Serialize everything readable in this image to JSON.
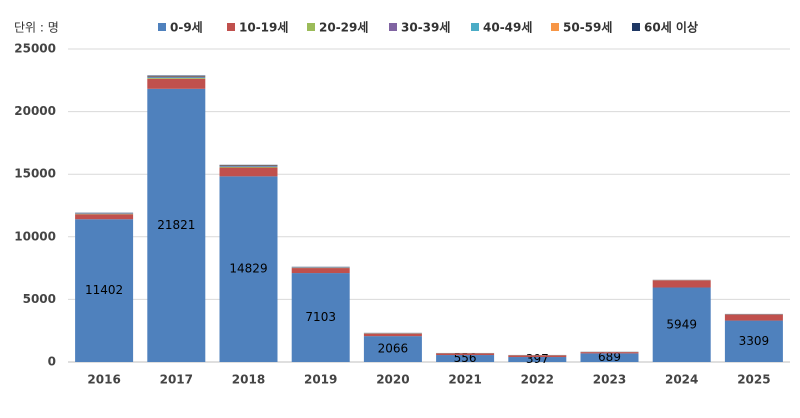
{
  "chart_data": {
    "type": "stacked_bar",
    "y_label": "단위 : 명",
    "categories": [
      "2016",
      "2017",
      "2018",
      "2019",
      "2020",
      "2021",
      "2022",
      "2023",
      "2024",
      "2025"
    ],
    "series": [
      {
        "name": "0-9세",
        "color": "#4f81bd",
        "data_labels": true,
        "values": [
          11402,
          21821,
          14829,
          7103,
          2066,
          556,
          397,
          689,
          5949,
          3309
        ]
      },
      {
        "name": "10-19세",
        "color": "#c0504d",
        "values": [
          400,
          800,
          700,
          400,
          200,
          130,
          130,
          100,
          580,
          480
        ]
      },
      {
        "name": "20-29세",
        "color": "#9bbb59",
        "values": [
          30,
          60,
          50,
          20,
          10,
          10,
          10,
          5,
          10,
          10
        ]
      },
      {
        "name": "30-39세",
        "color": "#8064a2",
        "values": [
          20,
          40,
          40,
          20,
          10,
          5,
          5,
          5,
          5,
          10
        ]
      },
      {
        "name": "40-49세",
        "color": "#4bacc6",
        "values": [
          20,
          50,
          40,
          20,
          10,
          5,
          5,
          5,
          5,
          5
        ]
      },
      {
        "name": "50-59세",
        "color": "#f79646",
        "values": [
          10,
          30,
          30,
          10,
          10,
          5,
          5,
          5,
          5,
          5
        ]
      },
      {
        "name": "60세 이상",
        "color": "#1f3864",
        "values": [
          40,
          80,
          60,
          30,
          20,
          10,
          10,
          10,
          10,
          20
        ]
      }
    ],
    "ylim": [
      0,
      25000
    ],
    "yticks": [
      0,
      5000,
      10000,
      15000,
      20000,
      25000
    ],
    "grid": true,
    "legend": "top"
  }
}
